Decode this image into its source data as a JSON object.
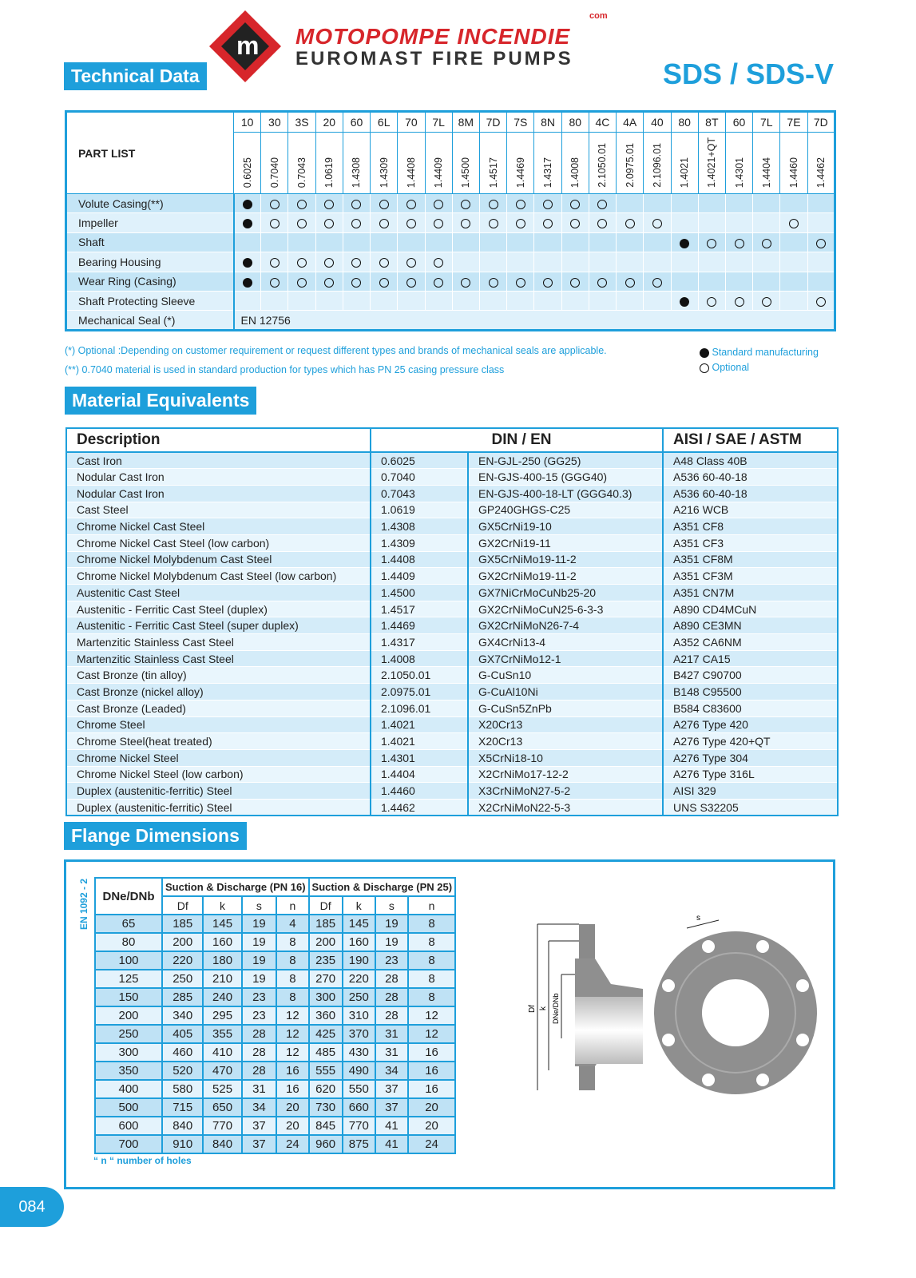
{
  "header": {
    "logo_top": "MOTOPOMPE INCENDIE",
    "logo_com": "com",
    "logo_bottom": "EUROMAST FIRE PUMPS",
    "section": "Technical Data",
    "model": "SDS / SDS-V",
    "brand_color": "#1e9fdb",
    "logo_color": "#d7262b"
  },
  "parts": {
    "title": "PART LIST",
    "codes": [
      "10",
      "30",
      "3S",
      "20",
      "60",
      "6L",
      "70",
      "7L",
      "8M",
      "7D",
      "7S",
      "8N",
      "80",
      "4C",
      "4A",
      "40",
      "80",
      "8T",
      "60",
      "7L",
      "7E",
      "7D"
    ],
    "materials": [
      "0.6025",
      "0.7040",
      "0.7043",
      "1.0619",
      "1.4308",
      "1.4309",
      "1.4408",
      "1.4409",
      "1.4500",
      "1.4517",
      "1.4469",
      "1.4317",
      "1.4008",
      "2.1050.01",
      "2.0975.01",
      "2.1096.01",
      "1.4021",
      "1.4021+QT",
      "1.4301",
      "1.4404",
      "1.4460",
      "1.4462"
    ],
    "rows": [
      {
        "label": "Volute Casing(**)",
        "marks": [
          "f",
          "o",
          "o",
          "o",
          "o",
          "o",
          "o",
          "o",
          "o",
          "o",
          "o",
          "o",
          "o",
          "o",
          "",
          "",
          "",
          "",
          "",
          "",
          "",
          ""
        ]
      },
      {
        "label": "Impeller",
        "marks": [
          "f",
          "o",
          "o",
          "o",
          "o",
          "o",
          "o",
          "o",
          "o",
          "o",
          "o",
          "o",
          "o",
          "o",
          "o",
          "o",
          "",
          "",
          "",
          "",
          "o",
          ""
        ]
      },
      {
        "label": "Shaft",
        "marks": [
          "",
          "",
          "",
          "",
          "",
          "",
          "",
          "",
          "",
          "",
          "",
          "",
          "",
          "",
          "",
          "",
          "f",
          "o",
          "o",
          "o",
          "",
          "o"
        ]
      },
      {
        "label": "Bearing Housing",
        "marks": [
          "f",
          "o",
          "o",
          "o",
          "o",
          "o",
          "o",
          "o",
          "",
          "",
          "",
          "",
          "",
          "",
          "",
          "",
          "",
          "",
          "",
          "",
          "",
          ""
        ]
      },
      {
        "label": "Wear Ring (Casing)",
        "marks": [
          "f",
          "o",
          "o",
          "o",
          "o",
          "o",
          "o",
          "o",
          "o",
          "o",
          "o",
          "o",
          "o",
          "o",
          "o",
          "o",
          "",
          "",
          "",
          "",
          "",
          ""
        ]
      },
      {
        "label": "Shaft Protecting Sleeve",
        "marks": [
          "",
          "",
          "",
          "",
          "",
          "",
          "",
          "",
          "",
          "",
          "",
          "",
          "",
          "",
          "",
          "",
          "f",
          "o",
          "o",
          "o",
          "",
          "o"
        ]
      }
    ],
    "seal": {
      "label": "Mechanical Seal (*)",
      "value": "EN 12756"
    },
    "note1": "(*) Optional :Depending on customer requirement or request different types and brands of mechanical seals are applicable.",
    "note2": "(**) 0.7040 material is used in standard production for types which has PN 25 casing pressure class",
    "legend_standard": "Standard manufacturing",
    "legend_optional": "Optional"
  },
  "materials": {
    "section": "Material Equivalents",
    "headers": [
      "Description",
      "DIN / EN",
      "AISI / SAE / ASTM"
    ],
    "rows": [
      [
        "Cast Iron",
        "0.6025",
        "EN-GJL-250 (GG25)",
        "A48 Class 40B"
      ],
      [
        "Nodular Cast Iron",
        "0.7040",
        "EN-GJS-400-15 (GGG40)",
        "A536 60-40-18"
      ],
      [
        "Nodular Cast Iron",
        "0.7043",
        "EN-GJS-400-18-LT (GGG40.3)",
        "A536 60-40-18"
      ],
      [
        "Cast Steel",
        "1.0619",
        "GP240GHGS-C25",
        "A216 WCB"
      ],
      [
        "Chrome Nickel Cast Steel",
        "1.4308",
        "GX5CrNi19-10",
        "A351 CF8"
      ],
      [
        "Chrome Nickel Cast Steel (low carbon)",
        "1.4309",
        "GX2CrNi19-11",
        "A351 CF3"
      ],
      [
        "Chrome Nickel Molybdenum Cast Steel",
        "1.4408",
        "GX5CrNiMo19-11-2",
        "A351 CF8M"
      ],
      [
        "Chrome Nickel Molybdenum Cast Steel (low carbon)",
        "1.4409",
        "GX2CrNiMo19-11-2",
        "A351 CF3M"
      ],
      [
        "Austenitic Cast Steel",
        "1.4500",
        "GX7NiCrMoCuNb25-20",
        "A351 CN7M"
      ],
      [
        "Austenitic - Ferritic Cast Steel (duplex)",
        "1.4517",
        "GX2CrNiMoCuN25-6-3-3",
        "A890 CD4MCuN"
      ],
      [
        "Austenitic - Ferritic Cast Steel (super duplex)",
        "1.4469",
        "GX2CrNiMoN26-7-4",
        "A890 CE3MN"
      ],
      [
        "Martenzitic Stainless Cast Steel",
        "1.4317",
        "GX4CrNi13-4",
        "A352 CA6NM"
      ],
      [
        "Martenzitic Stainless Cast Steel",
        "1.4008",
        "GX7CrNiMo12-1",
        "A217 CA15"
      ],
      [
        "Cast Bronze (tin alloy)",
        "2.1050.01",
        "G-CuSn10",
        "B427 C90700"
      ],
      [
        "Cast Bronze (nickel alloy)",
        "2.0975.01",
        "G-CuAl10Ni",
        "B148 C95500"
      ],
      [
        "Cast Bronze (Leaded)",
        "2.1096.01",
        "G-CuSn5ZnPb",
        "B584 C83600"
      ],
      [
        "Chrome Steel",
        "1.4021",
        "X20Cr13",
        "A276 Type 420"
      ],
      [
        "Chrome Steel(heat treated)",
        "1.4021",
        "X20Cr13",
        "A276 Type 420+QT"
      ],
      [
        "Chrome Nickel Steel",
        "1.4301",
        "X5CrNi18-10",
        "A276 Type 304"
      ],
      [
        "Chrome Nickel Steel (low carbon)",
        "1.4404",
        "X2CrNiMo17-12-2",
        "A276 Type 316L"
      ],
      [
        "Duplex (austenitic-ferritic) Steel",
        "1.4460",
        "X3CrNiMoN27-5-2",
        "AISI 329"
      ],
      [
        "Duplex (austenitic-ferritic) Steel",
        "1.4462",
        "X2CrNiMoN22-5-3",
        "UNS S32205"
      ]
    ]
  },
  "flange": {
    "section": "Flange Dimensions",
    "standard": "EN 1092 - 2",
    "col0": "DNe/DNb",
    "group1": "Suction & Discharge (PN 16)",
    "group2": "Suction & Discharge (PN 25)",
    "sub": [
      "Df",
      "k",
      "s",
      "n",
      "Df",
      "k",
      "s",
      "n"
    ],
    "rows": [
      [
        "65",
        "185",
        "145",
        "19",
        "4",
        "185",
        "145",
        "19",
        "8"
      ],
      [
        "80",
        "200",
        "160",
        "19",
        "8",
        "200",
        "160",
        "19",
        "8"
      ],
      [
        "100",
        "220",
        "180",
        "19",
        "8",
        "235",
        "190",
        "23",
        "8"
      ],
      [
        "125",
        "250",
        "210",
        "19",
        "8",
        "270",
        "220",
        "28",
        "8"
      ],
      [
        "150",
        "285",
        "240",
        "23",
        "8",
        "300",
        "250",
        "28",
        "8"
      ],
      [
        "200",
        "340",
        "295",
        "23",
        "12",
        "360",
        "310",
        "28",
        "12"
      ],
      [
        "250",
        "405",
        "355",
        "28",
        "12",
        "425",
        "370",
        "31",
        "12"
      ],
      [
        "300",
        "460",
        "410",
        "28",
        "12",
        "485",
        "430",
        "31",
        "16"
      ],
      [
        "350",
        "520",
        "470",
        "28",
        "16",
        "555",
        "490",
        "34",
        "16"
      ],
      [
        "400",
        "580",
        "525",
        "31",
        "16",
        "620",
        "550",
        "37",
        "16"
      ],
      [
        "500",
        "715",
        "650",
        "34",
        "20",
        "730",
        "660",
        "37",
        "20"
      ],
      [
        "600",
        "840",
        "770",
        "37",
        "20",
        "845",
        "770",
        "41",
        "20"
      ],
      [
        "700",
        "910",
        "840",
        "37",
        "24",
        "960",
        "875",
        "41",
        "24"
      ]
    ],
    "holes_note": "“ n “ number of holes",
    "diagram_labels": {
      "df": "Df",
      "k": "k",
      "dn": "DNe/DNb",
      "s": "s"
    }
  },
  "page_number": "084"
}
